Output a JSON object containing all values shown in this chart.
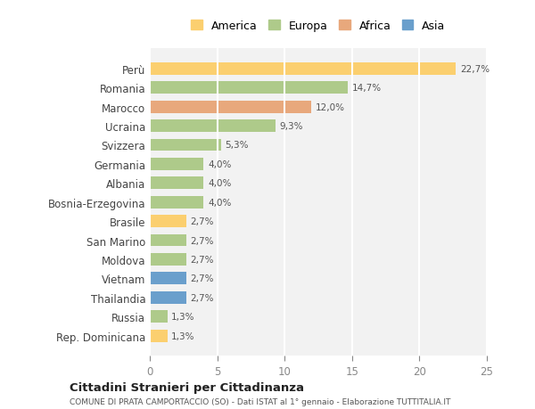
{
  "countries": [
    "Perù",
    "Romania",
    "Marocco",
    "Ucraina",
    "Svizzera",
    "Germania",
    "Albania",
    "Bosnia-Erzegovina",
    "Brasile",
    "San Marino",
    "Moldova",
    "Vietnam",
    "Thailandia",
    "Russia",
    "Rep. Dominicana"
  ],
  "values": [
    22.7,
    14.7,
    12.0,
    9.3,
    5.3,
    4.0,
    4.0,
    4.0,
    2.7,
    2.7,
    2.7,
    2.7,
    2.7,
    1.3,
    1.3
  ],
  "labels": [
    "22,7%",
    "14,7%",
    "12,0%",
    "9,3%",
    "5,3%",
    "4,0%",
    "4,0%",
    "4,0%",
    "2,7%",
    "2,7%",
    "2,7%",
    "2,7%",
    "2,7%",
    "1,3%",
    "1,3%"
  ],
  "colors": [
    "#FBCF6F",
    "#AECA8A",
    "#E8A87C",
    "#AECA8A",
    "#AECA8A",
    "#AECA8A",
    "#AECA8A",
    "#AECA8A",
    "#FBCF6F",
    "#AECA8A",
    "#AECA8A",
    "#6A9FCC",
    "#6A9FCC",
    "#AECA8A",
    "#FBCF6F"
  ],
  "legend_labels": [
    "America",
    "Europa",
    "Africa",
    "Asia"
  ],
  "legend_colors": [
    "#FBCF6F",
    "#AECA8A",
    "#E8A87C",
    "#6A9FCC"
  ],
  "xlim": [
    0,
    25
  ],
  "xticks": [
    0,
    5,
    10,
    15,
    20,
    25
  ],
  "title": "Cittadini Stranieri per Cittadinanza",
  "subtitle": "COMUNE DI PRATA CAMPORTACCIO (SO) - Dati ISTAT al 1° gennaio - Elaborazione TUTTITALIA.IT",
  "background_color": "#FFFFFF",
  "bar_background": "#F2F2F2",
  "grid_color": "#FFFFFF"
}
